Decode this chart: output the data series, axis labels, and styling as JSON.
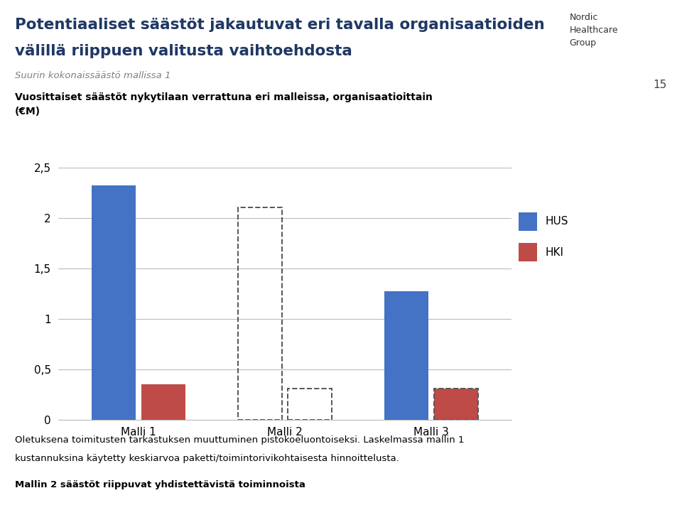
{
  "title_line1": "Potentiaaliset säästöt jakautuvat eri tavalla organisaatioiden",
  "title_line2": "välillä riippuen valitusta vaihtoehdosta",
  "subtitle": "Suurin kokonaissäästö mallissa 1",
  "chart_label": "Vuosittaiset säästöt nykytilaan verrattuna eri malleissa, organisaatioittain\n(€M)",
  "page_number": "15",
  "categories": [
    "Malli 1",
    "Malli 2",
    "Malli 3"
  ],
  "HUS_values": [
    2.32,
    2.1,
    1.27
  ],
  "HKI_values": [
    0.35,
    0.31,
    0.31
  ],
  "HUS_dashed": [
    false,
    true,
    false
  ],
  "HUS_filled": [
    true,
    false,
    true
  ],
  "HKI_dashed": [
    false,
    true,
    true
  ],
  "HKI_filled": [
    true,
    false,
    true
  ],
  "HUS_color": "#4472C4",
  "HKI_color": "#BE4B48",
  "ylim": [
    0,
    2.5
  ],
  "yticks": [
    0,
    0.5,
    1.0,
    1.5,
    2.0,
    2.5
  ],
  "ytick_labels": [
    "0",
    "0,5",
    "1",
    "1,5",
    "2",
    "2,5"
  ],
  "bar_width": 0.3,
  "bar_gap": 0.04,
  "footnote1": "Oletuksena toimitusten tarkastuksen muuttuminen pistokoeluontoiseksi. Laskelmassa mallin 1",
  "footnote2": "kustannuksina käytetty keskiarvoa paketti/toimintorivikohtaisesta hinnoittelusta.",
  "footnote3": "Mallin 2 säästöt riippuvat yhdistettävistä toiminnoista",
  "bg_color": "#FFFFFF",
  "title_color": "#1F3864",
  "divider_color": "#4472C4",
  "subtitle_color": "#808080",
  "logo_text": "Nordic\nHealthcare\nGroup",
  "logo_color": "#333333"
}
